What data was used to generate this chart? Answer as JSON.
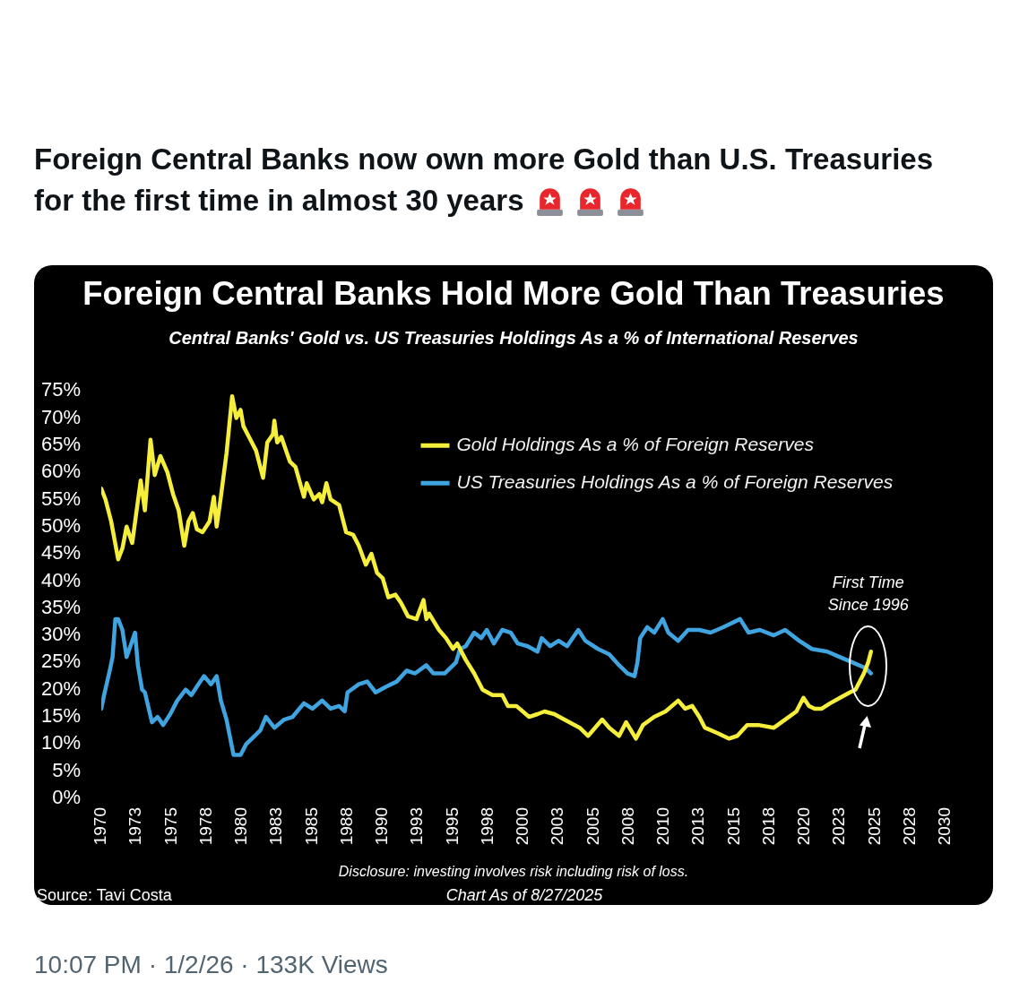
{
  "chart_data": {
    "type": "line",
    "title": "Foreign Central Banks Hold More Gold Than Treasuries",
    "subtitle": "Central Banks' Gold vs. US Treasuries Holdings As a % of International Reserves",
    "annotations": [
      "Foreign Central Banks now own more Gold than U.S. Treasuries for the first time in almost 30 years",
      "First Time Since 1996",
      "Disclosure: investing involves risk including risk of loss.",
      "Source: Tavi Costa",
      "Chart As of 8/27/2025",
      "10:07 PM · 1/2/26 · 133K Views"
    ],
    "xlim": [
      1970,
      2030
    ],
    "xticks": [
      1970,
      {
        "value": 1972.5,
        "label": "1973"
      },
      1975,
      {
        "value": 1977.5,
        "label": "1978"
      },
      1980,
      {
        "value": 1982.5,
        "label": "1983"
      },
      1985,
      {
        "value": 1987.5,
        "label": "1988"
      },
      1990,
      {
        "value": 1992.5,
        "label": "1993"
      },
      1995,
      {
        "value": 1997.5,
        "label": "1998"
      },
      2000,
      {
        "value": 2002.5,
        "label": "2003"
      },
      2005,
      {
        "value": 2007.5,
        "label": "2008"
      },
      2010,
      {
        "value": 2012.5,
        "label": "2013"
      },
      2015,
      {
        "value": 2017.5,
        "label": "2018"
      },
      2020,
      {
        "value": 2022.5,
        "label": "2023"
      },
      2025,
      {
        "value": 2027.5,
        "label": "2028"
      },
      2030
    ],
    "ylim": [
      0,
      75
    ],
    "yticks": [
      {
        "value": 0,
        "label": "0%"
      },
      {
        "value": 5,
        "label": "5%"
      },
      {
        "value": 10,
        "label": "10%"
      },
      {
        "value": 15,
        "label": "15%"
      },
      {
        "value": 20,
        "label": "20%"
      },
      {
        "value": 25,
        "label": "25%"
      },
      {
        "value": 30,
        "label": "30%"
      },
      {
        "value": 35,
        "label": "35%"
      },
      {
        "value": 40,
        "label": "40%"
      },
      {
        "value": 45,
        "label": "45%"
      },
      {
        "value": 50,
        "label": "50%"
      },
      {
        "value": 55,
        "label": "55%"
      },
      {
        "value": 60,
        "label": "60%"
      },
      {
        "value": 65,
        "label": "65%"
      },
      {
        "value": 70,
        "label": "70%"
      },
      {
        "value": 75,
        "label": "75%"
      }
    ],
    "legend": "top right",
    "marker": "none",
    "series": [
      {
        "name": "Gold Holdings As a % of Foreign Reserves",
        "color": "#f5ee3b",
        "x": [
          1970.0,
          1970.3,
          1970.7,
          1971.2,
          1971.5,
          1971.8,
          1972.2,
          1972.8,
          1973.1,
          1973.5,
          1973.8,
          1974.2,
          1974.7,
          1975.1,
          1975.5,
          1975.9,
          1976.2,
          1976.5,
          1976.8,
          1977.2,
          1977.7,
          1978.0,
          1978.2,
          1978.5,
          1978.9,
          1979.3,
          1979.6,
          1979.9,
          1980.1,
          1980.5,
          1981.0,
          1981.5,
          1981.8,
          1982.2,
          1982.3,
          1982.5,
          1982.8,
          1983.4,
          1983.8,
          1984.4,
          1984.6,
          1985.1,
          1985.5,
          1985.7,
          1986.0,
          1986.3,
          1986.9,
          1987.4,
          1987.9,
          1988.3,
          1988.8,
          1989.2,
          1989.6,
          1990.0,
          1990.4,
          1990.9,
          1991.3,
          1991.8,
          1992.4,
          1992.9,
          1993.1,
          1993.3,
          1994.0,
          1994.5,
          1995.0,
          1995.3,
          1995.9,
          1996.5,
          1997.1,
          1997.8,
          1998.5,
          1998.9,
          1999.5,
          2000.4,
          2001.0,
          2001.5,
          2002.2,
          2002.9,
          2004.0,
          2004.6,
          2005.6,
          2006.1,
          2006.8,
          2007.3,
          2008.0,
          2008.5,
          2009.3,
          2010.1,
          2011.0,
          2011.5,
          2012.0,
          2012.5,
          2012.9,
          2013.8,
          2014.6,
          2015.2,
          2015.9,
          2016.7,
          2017.8,
          2018.6,
          2019.4,
          2019.9,
          2020.3,
          2020.7,
          2021.2,
          2021.8,
          2022.5,
          2023.2,
          2023.6,
          2024.2,
          2024.5,
          2024.7
        ],
        "values": [
          57,
          55,
          51,
          44,
          46,
          50,
          47,
          58.5,
          53,
          66,
          59.5,
          63,
          60,
          56,
          53,
          46.5,
          51,
          52.5,
          49.5,
          49,
          51,
          55.5,
          50,
          55.5,
          63.5,
          74,
          70,
          71.5,
          68.5,
          66.5,
          64,
          59,
          65.5,
          67,
          69.5,
          65.5,
          66.5,
          62,
          61,
          55.5,
          58,
          55,
          56,
          54.5,
          58,
          55,
          54,
          49,
          48.5,
          46.5,
          43,
          45,
          41.5,
          40.5,
          37,
          37.5,
          36,
          33.5,
          33,
          36.5,
          33,
          34,
          31,
          29.5,
          27.5,
          28.5,
          25.5,
          23,
          20,
          19,
          19,
          17,
          17,
          15,
          15.5,
          16,
          15.5,
          14.5,
          13,
          11.5,
          14.5,
          13,
          11.5,
          14,
          11,
          13.5,
          15,
          16,
          18,
          16.5,
          17,
          15,
          13,
          12,
          11,
          11.5,
          13.5,
          13.5,
          13,
          14.5,
          16,
          18.5,
          17,
          16.5,
          16.5,
          17.5,
          18.5,
          19.5,
          20,
          23,
          25,
          27
        ]
      },
      {
        "name": "US Treasuries Holdings As a % of Foreign Reserves",
        "color": "#3fa4e0",
        "x": [
          1970.0,
          1970.2,
          1970.6,
          1970.8,
          1971.0,
          1971.2,
          1971.5,
          1971.8,
          1972.0,
          1972.4,
          1972.6,
          1972.9,
          1973.1,
          1973.6,
          1974.0,
          1974.4,
          1974.9,
          1975.4,
          1976.0,
          1976.4,
          1976.9,
          1977.3,
          1977.8,
          1978.2,
          1978.5,
          1978.9,
          1979.4,
          1979.9,
          1980.3,
          1980.7,
          1981.3,
          1981.7,
          1982.3,
          1983.0,
          1983.6,
          1984.4,
          1985.0,
          1985.7,
          1986.3,
          1986.9,
          1987.3,
          1987.5,
          1988.3,
          1988.9,
          1989.5,
          1990.2,
          1991.0,
          1991.7,
          1992.3,
          1993.1,
          1993.6,
          1994.4,
          1995.2,
          1995.5,
          1995.9,
          1996.5,
          1997.0,
          1997.4,
          1997.9,
          1998.5,
          1999.1,
          1999.6,
          2000.3,
          2001.0,
          2001.3,
          2001.9,
          2002.5,
          2003.1,
          2003.9,
          2004.4,
          2005.3,
          2006.1,
          2006.8,
          2007.4,
          2007.9,
          2008.1,
          2008.3,
          2008.8,
          2009.3,
          2009.9,
          2010.3,
          2011.0,
          2011.7,
          2012.5,
          2013.3,
          2014.2,
          2015.4,
          2016.0,
          2016.8,
          2017.8,
          2018.6,
          2019.6,
          2020.5,
          2021.6,
          2022.5,
          2023.4,
          2024.3,
          2024.7
        ],
        "values": [
          16.5,
          19,
          23.5,
          26,
          33,
          33,
          31,
          26,
          27.5,
          30.5,
          24.5,
          20,
          19.5,
          14,
          15,
          13.5,
          15.5,
          18,
          20,
          19,
          21,
          22.5,
          21,
          22.5,
          18,
          14.5,
          8,
          8,
          10,
          11,
          12.5,
          15,
          13,
          14.5,
          15,
          17.5,
          16.5,
          18,
          16.5,
          17,
          16,
          19.5,
          21,
          21.5,
          19.5,
          20.5,
          21.5,
          23.5,
          23,
          24.5,
          23,
          23,
          25,
          27.5,
          28,
          30.5,
          29.5,
          31,
          28.5,
          31,
          30.5,
          28.5,
          28,
          27,
          29.5,
          28,
          29,
          28,
          31,
          29,
          27.5,
          26.5,
          24.5,
          23,
          22.5,
          25,
          29.5,
          31.5,
          30.5,
          33,
          30.5,
          29,
          31,
          31,
          30.5,
          31.5,
          33,
          30.5,
          31,
          30,
          31,
          29,
          27.5,
          27,
          26,
          25,
          24,
          23
        ]
      }
    ]
  }
}
